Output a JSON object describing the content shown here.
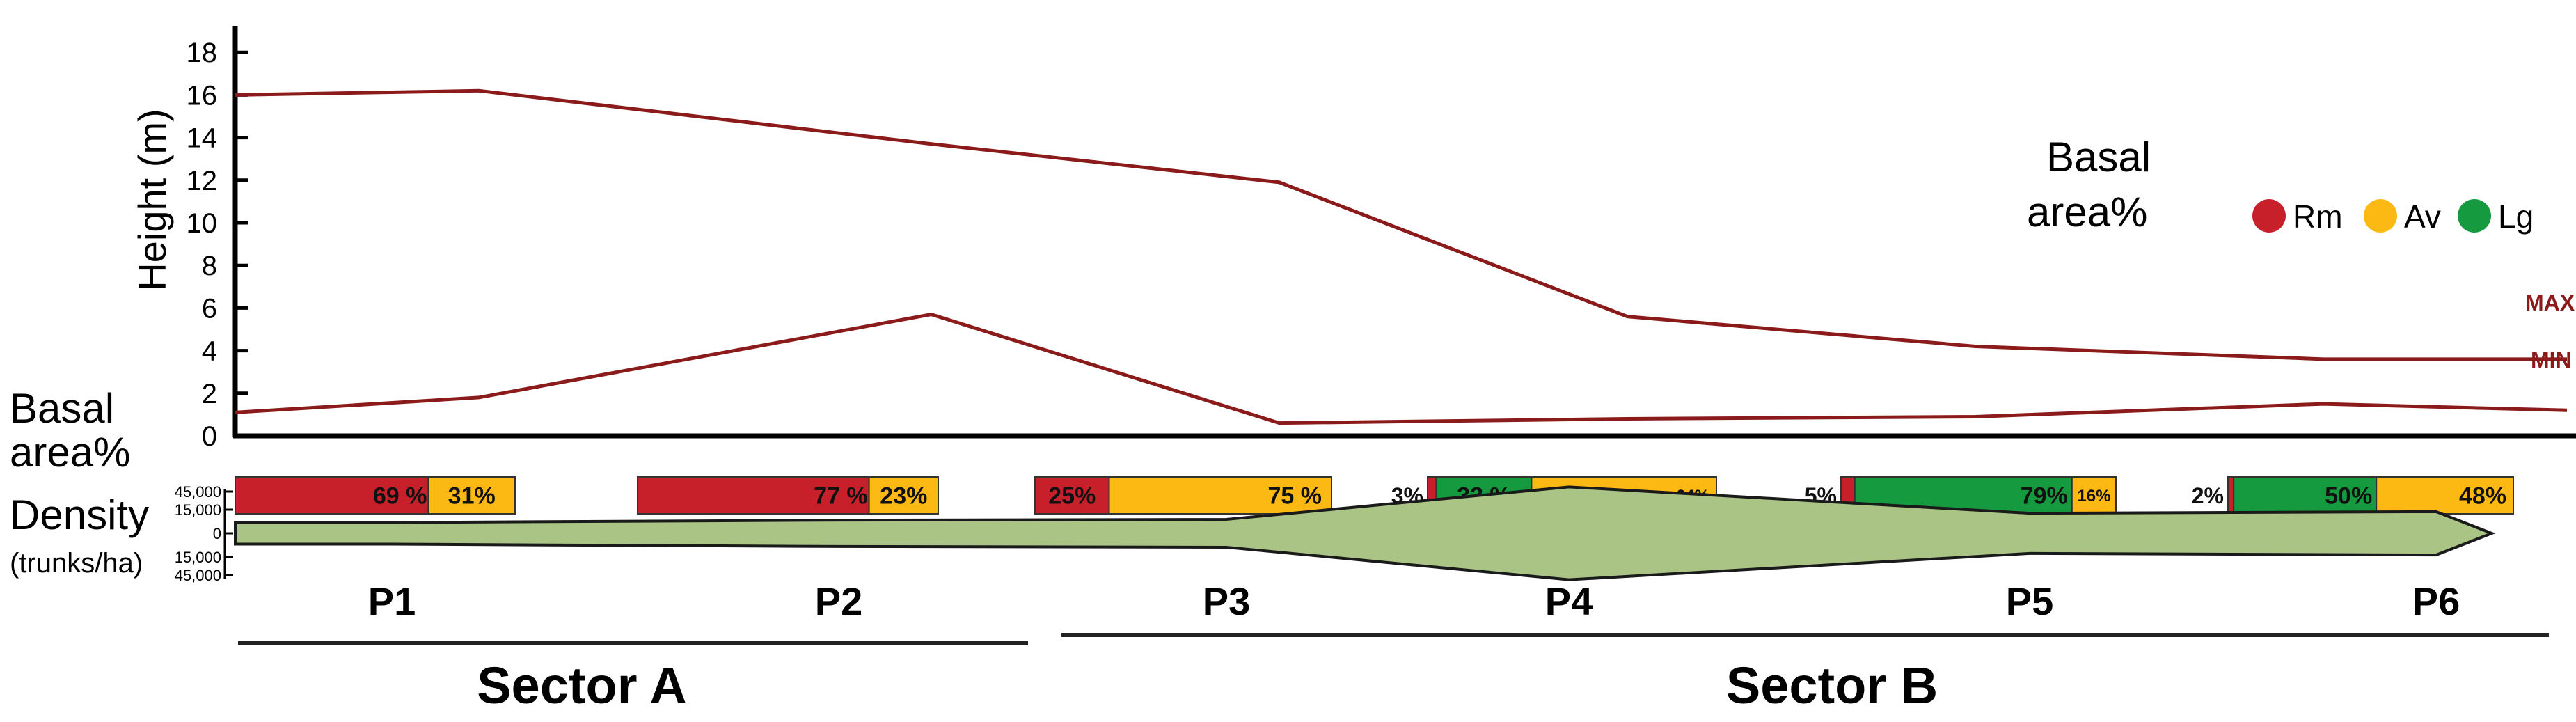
{
  "colors": {
    "line": "#8b1a1a",
    "rm": "#c8202b",
    "av": "#fdb913",
    "lg": "#159a3f",
    "density_fill": "#a9c485",
    "density_stroke": "#1a1a1a"
  },
  "height_axis": {
    "label": "Height (m)",
    "ticks": [
      "0",
      "2",
      "4",
      "6",
      "8",
      "10",
      "12",
      "14",
      "16",
      "18"
    ]
  },
  "legend": {
    "title_line1": "Basal",
    "title_line2": "area%",
    "items": [
      {
        "label": "Rm",
        "color_key": "rm"
      },
      {
        "label": "Av",
        "color_key": "av"
      },
      {
        "label": "Lg",
        "color_key": "lg"
      }
    ]
  },
  "line_labels": {
    "max": "MAX",
    "min": "MIN"
  },
  "basal_row_label": {
    "line1": "Basal",
    "line2": "area%"
  },
  "density_label": {
    "line1": "Density",
    "line2": "(trunks/ha)"
  },
  "density_ticks": [
    "45,000",
    "15,000",
    "0",
    "15,000",
    "45,000"
  ],
  "sectors": [
    {
      "label": "Sector A"
    },
    {
      "label": "Sector B"
    }
  ],
  "chart_data": {
    "type": "line",
    "ylabel": "Height (m)",
    "ylim": [
      0,
      18
    ],
    "series": [
      {
        "name": "MAX",
        "points": [
          [
            0,
            16.0
          ],
          [
            0.7,
            16.2
          ],
          [
            2.0,
            13.7
          ],
          [
            3.0,
            11.9
          ],
          [
            4.0,
            5.6
          ],
          [
            5.0,
            4.2
          ],
          [
            6.0,
            3.6
          ],
          [
            6.7,
            3.6
          ]
        ]
      },
      {
        "name": "MIN",
        "points": [
          [
            0,
            1.1
          ],
          [
            0.7,
            1.8
          ],
          [
            2.0,
            5.7
          ],
          [
            3.0,
            0.6
          ],
          [
            4.0,
            0.8
          ],
          [
            5.0,
            0.9
          ],
          [
            6.0,
            1.5
          ],
          [
            6.7,
            1.2
          ]
        ]
      }
    ],
    "plots": [
      {
        "label": "P1",
        "basal": [
          {
            "species": "Rm",
            "pct": 69,
            "text": "69 %"
          },
          {
            "species": "Av",
            "pct": 31,
            "text": "31%"
          }
        ],
        "density_half": 7000
      },
      {
        "label": "P2",
        "basal": [
          {
            "species": "Rm",
            "pct": 77,
            "text": "77 %"
          },
          {
            "species": "Av",
            "pct": 23,
            "text": "23%"
          }
        ],
        "density_half": 8500
      },
      {
        "label": "P3",
        "basal": [
          {
            "species": "Rm",
            "pct": 25,
            "text": "25%"
          },
          {
            "species": "Av",
            "pct": 75,
            "text": "75 %"
          }
        ],
        "density_half": 9000
      },
      {
        "label": "P4",
        "basal": [
          {
            "species": "Rm",
            "pct": 3,
            "text": "3%"
          },
          {
            "species": "Lg",
            "pct": 33,
            "text": "33 %"
          },
          {
            "species": "Av",
            "pct": 64,
            "text": "64%"
          }
        ],
        "density_half": 30000
      },
      {
        "label": "P5",
        "basal": [
          {
            "species": "Rm",
            "pct": 5,
            "text": "5%"
          },
          {
            "species": "Lg",
            "pct": 79,
            "text": "79%"
          },
          {
            "species": "Av",
            "pct": 16,
            "text": "16%"
          }
        ],
        "density_half": 13000
      },
      {
        "label": "P6",
        "basal": [
          {
            "species": "Rm",
            "pct": 2,
            "text": "2%"
          },
          {
            "species": "Lg",
            "pct": 50,
            "text": "50%"
          },
          {
            "species": "Av",
            "pct": 48,
            "text": "48%"
          }
        ],
        "density_half": 14000
      }
    ]
  }
}
